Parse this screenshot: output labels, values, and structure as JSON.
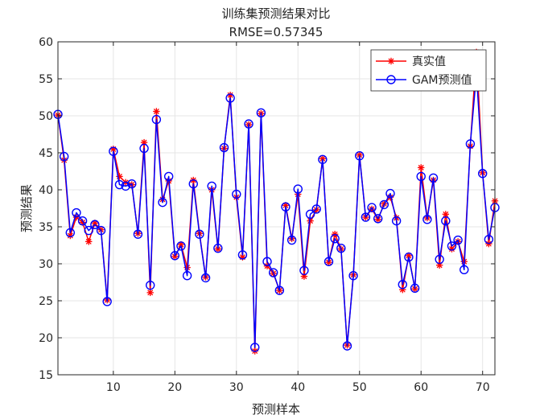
{
  "chart_data": {
    "type": "line",
    "title": "训练集预测结果对比",
    "subtitle": "RMSE=0.57345",
    "xlabel": "预测样本",
    "ylabel": "预测结果",
    "xlim": [
      1,
      72
    ],
    "ylim": [
      15,
      60
    ],
    "xticks": [
      10,
      20,
      30,
      40,
      50,
      60,
      70
    ],
    "yticks": [
      15,
      20,
      25,
      30,
      35,
      40,
      45,
      50,
      55,
      60
    ],
    "grid": true,
    "legend_position": "top-right",
    "x": [
      1,
      2,
      3,
      4,
      5,
      6,
      7,
      8,
      9,
      10,
      11,
      12,
      13,
      14,
      15,
      16,
      17,
      18,
      19,
      20,
      21,
      22,
      23,
      24,
      25,
      26,
      27,
      28,
      29,
      30,
      31,
      32,
      33,
      34,
      35,
      36,
      37,
      38,
      39,
      40,
      41,
      42,
      43,
      44,
      45,
      46,
      47,
      48,
      49,
      50,
      51,
      52,
      53,
      54,
      55,
      56,
      57,
      58,
      59,
      60,
      61,
      62,
      63,
      64,
      65,
      66,
      67,
      68,
      69,
      70,
      71,
      72
    ],
    "series": [
      {
        "name": "真实值",
        "color": "#ff0000",
        "marker": "asterisk",
        "values": [
          50.1,
          44.0,
          33.8,
          36.3,
          35.6,
          33.0,
          35.5,
          34.6,
          25.1,
          45.5,
          41.8,
          41.0,
          40.7,
          34.1,
          46.4,
          26.1,
          50.6,
          38.7,
          41.2,
          31.0,
          32.6,
          29.5,
          41.3,
          34.1,
          28.2,
          40.0,
          32.0,
          45.6,
          52.8,
          39.0,
          30.9,
          48.8,
          18.2,
          50.3,
          29.7,
          28.7,
          26.4,
          37.9,
          33.4,
          39.4,
          28.3,
          35.8,
          37.3,
          44.2,
          30.2,
          34.0,
          32.0,
          19.0,
          28.5,
          44.7,
          36.3,
          37.4,
          36.0,
          38.1,
          39.0,
          36.2,
          26.5,
          31.1,
          26.6,
          43.0,
          36.2,
          41.3,
          29.8,
          36.7,
          32.0,
          33.0,
          30.3,
          45.9,
          58.6,
          42.3,
          32.7,
          38.5
        ]
      },
      {
        "name": "GAM预测值",
        "color": "#0000ff",
        "marker": "circle",
        "values": [
          50.2,
          44.5,
          34.2,
          36.9,
          35.8,
          34.5,
          35.3,
          34.5,
          24.9,
          45.2,
          40.7,
          40.5,
          40.8,
          34.0,
          45.6,
          27.1,
          49.5,
          38.3,
          41.8,
          31.1,
          32.4,
          28.4,
          40.8,
          34.0,
          28.1,
          40.5,
          32.1,
          45.7,
          52.4,
          39.4,
          31.2,
          48.9,
          18.7,
          50.4,
          30.3,
          28.8,
          26.4,
          37.7,
          33.2,
          40.1,
          29.1,
          36.7,
          37.4,
          44.1,
          30.3,
          33.4,
          32.1,
          18.9,
          28.4,
          44.6,
          36.3,
          37.6,
          36.1,
          38.0,
          39.5,
          35.8,
          27.2,
          30.9,
          26.7,
          41.8,
          36.0,
          41.6,
          30.6,
          35.8,
          32.4,
          33.2,
          29.2,
          46.2,
          55.7,
          42.2,
          33.3,
          37.6
        ]
      }
    ]
  }
}
